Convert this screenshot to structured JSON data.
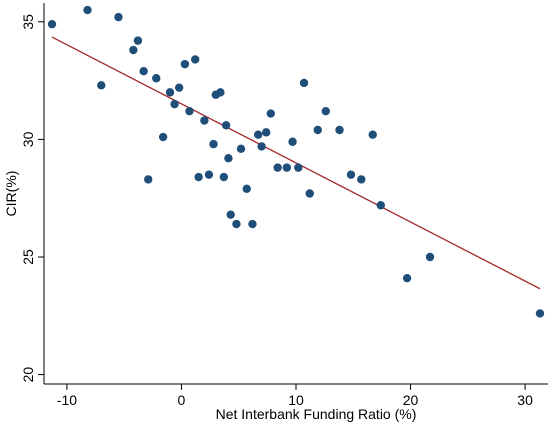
{
  "chart_data": {
    "type": "scatter",
    "title": "",
    "xlabel": "Net Interbank Funding Ratio (%)",
    "ylabel": "CIR(%)",
    "xlim": [
      -12,
      32
    ],
    "ylim": [
      19.6,
      35.8
    ],
    "xticks": [
      -10,
      0,
      10,
      20,
      30
    ],
    "yticks": [
      20,
      25,
      30,
      35
    ],
    "grid": false,
    "legend": "none",
    "colors": {
      "points": "#1f4e79",
      "fit_line": "#a52a2a",
      "axes": "#000000"
    },
    "points": [
      {
        "x": -11.3,
        "y": 34.9
      },
      {
        "x": -8.2,
        "y": 35.5
      },
      {
        "x": -7.0,
        "y": 32.3
      },
      {
        "x": -5.5,
        "y": 35.2
      },
      {
        "x": -4.2,
        "y": 33.8
      },
      {
        "x": -3.8,
        "y": 34.2
      },
      {
        "x": -3.3,
        "y": 32.9
      },
      {
        "x": -2.9,
        "y": 28.3
      },
      {
        "x": -2.2,
        "y": 32.6
      },
      {
        "x": -1.6,
        "y": 30.1
      },
      {
        "x": -1.0,
        "y": 32.0
      },
      {
        "x": -0.6,
        "y": 31.5
      },
      {
        "x": -0.2,
        "y": 32.2
      },
      {
        "x": 0.3,
        "y": 33.2
      },
      {
        "x": 0.7,
        "y": 31.2
      },
      {
        "x": 1.2,
        "y": 33.4
      },
      {
        "x": 1.5,
        "y": 28.4
      },
      {
        "x": 2.0,
        "y": 30.8
      },
      {
        "x": 2.4,
        "y": 28.5
      },
      {
        "x": 2.8,
        "y": 29.8
      },
      {
        "x": 3.0,
        "y": 31.9
      },
      {
        "x": 3.4,
        "y": 32.0
      },
      {
        "x": 3.7,
        "y": 28.4
      },
      {
        "x": 3.9,
        "y": 30.6
      },
      {
        "x": 4.1,
        "y": 29.2
      },
      {
        "x": 4.3,
        "y": 26.8
      },
      {
        "x": 4.8,
        "y": 26.4
      },
      {
        "x": 5.2,
        "y": 29.6
      },
      {
        "x": 5.7,
        "y": 27.9
      },
      {
        "x": 6.2,
        "y": 26.4
      },
      {
        "x": 6.7,
        "y": 30.2
      },
      {
        "x": 7.0,
        "y": 29.7
      },
      {
        "x": 7.4,
        "y": 30.3
      },
      {
        "x": 7.8,
        "y": 31.1
      },
      {
        "x": 8.4,
        "y": 28.8
      },
      {
        "x": 9.2,
        "y": 28.8
      },
      {
        "x": 9.7,
        "y": 29.9
      },
      {
        "x": 10.2,
        "y": 28.8
      },
      {
        "x": 10.7,
        "y": 32.4
      },
      {
        "x": 11.2,
        "y": 27.7
      },
      {
        "x": 11.9,
        "y": 30.4
      },
      {
        "x": 12.6,
        "y": 31.2
      },
      {
        "x": 13.8,
        "y": 30.4
      },
      {
        "x": 14.8,
        "y": 28.5
      },
      {
        "x": 15.7,
        "y": 28.3
      },
      {
        "x": 16.7,
        "y": 30.2
      },
      {
        "x": 17.4,
        "y": 27.2
      },
      {
        "x": 19.7,
        "y": 24.1
      },
      {
        "x": 21.7,
        "y": 25.0
      },
      {
        "x": 31.3,
        "y": 22.6
      }
    ],
    "fit_line": {
      "x0": -11.3,
      "y0": 34.35,
      "x1": 31.3,
      "y1": 23.65
    }
  }
}
